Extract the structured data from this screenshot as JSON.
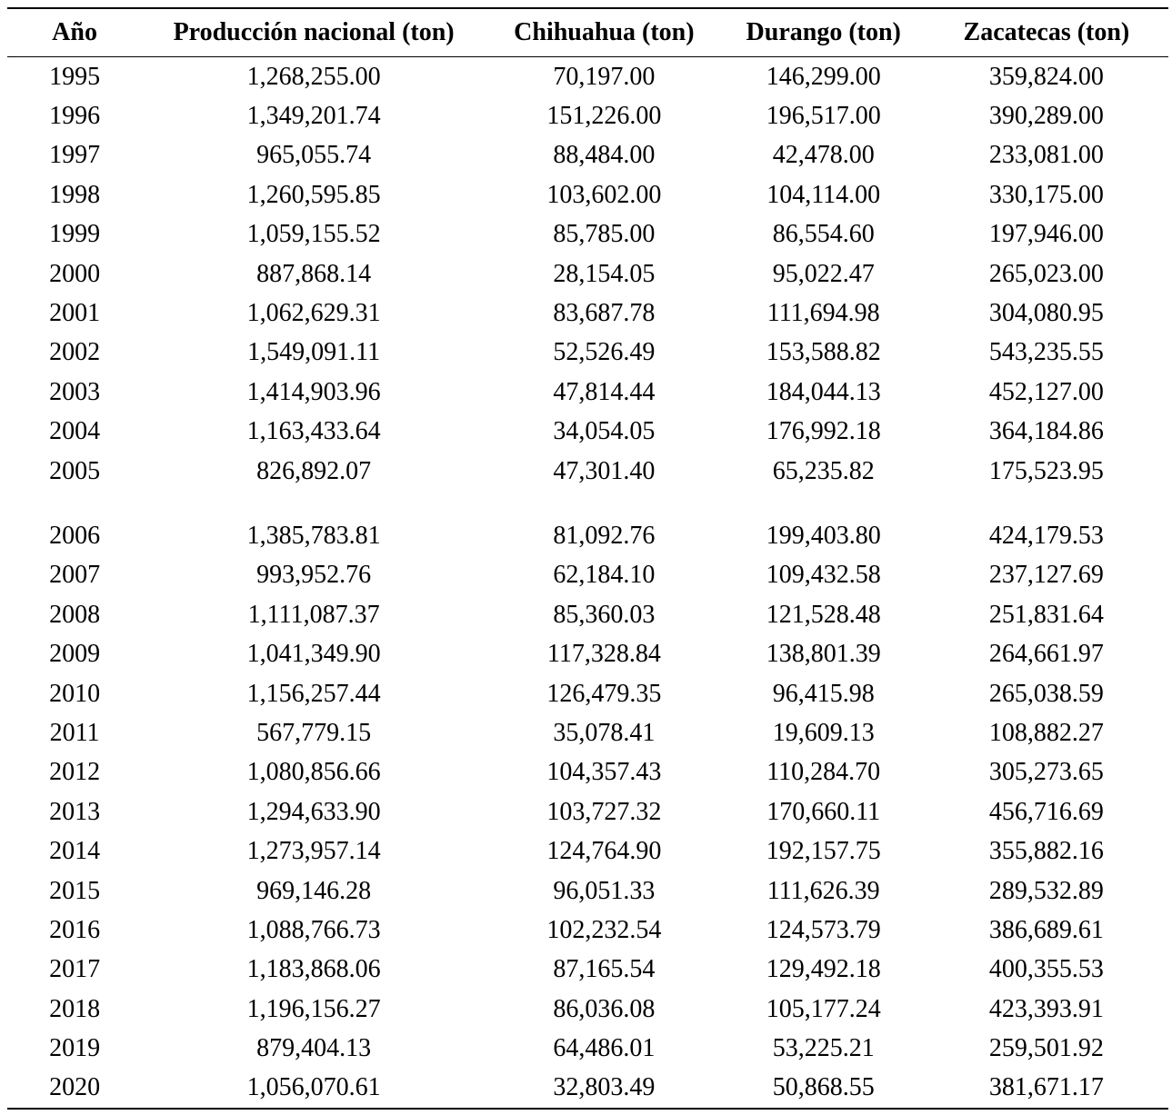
{
  "table": {
    "columns": [
      "Año",
      "Producción nacional (ton)",
      "Chihuahua (ton)",
      "Durango (ton)",
      "Zacatecas (ton)"
    ],
    "spacer_after_row": 10,
    "rows": [
      [
        "1995",
        "1,268,255.00",
        "70,197.00",
        "146,299.00",
        "359,824.00"
      ],
      [
        "1996",
        "1,349,201.74",
        "151,226.00",
        "196,517.00",
        "390,289.00"
      ],
      [
        "1997",
        "965,055.74",
        "88,484.00",
        "42,478.00",
        "233,081.00"
      ],
      [
        "1998",
        "1,260,595.85",
        "103,602.00",
        "104,114.00",
        "330,175.00"
      ],
      [
        "1999",
        "1,059,155.52",
        "85,785.00",
        "86,554.60",
        "197,946.00"
      ],
      [
        "2000",
        "887,868.14",
        "28,154.05",
        "95,022.47",
        "265,023.00"
      ],
      [
        "2001",
        "1,062,629.31",
        "83,687.78",
        "111,694.98",
        "304,080.95"
      ],
      [
        "2002",
        "1,549,091.11",
        "52,526.49",
        "153,588.82",
        "543,235.55"
      ],
      [
        "2003",
        "1,414,903.96",
        "47,814.44",
        "184,044.13",
        "452,127.00"
      ],
      [
        "2004",
        "1,163,433.64",
        "34,054.05",
        "176,992.18",
        "364,184.86"
      ],
      [
        "2005",
        "826,892.07",
        "47,301.40",
        "65,235.82",
        "175,523.95"
      ],
      [
        "2006",
        "1,385,783.81",
        "81,092.76",
        "199,403.80",
        "424,179.53"
      ],
      [
        "2007",
        "993,952.76",
        "62,184.10",
        "109,432.58",
        "237,127.69"
      ],
      [
        "2008",
        "1,111,087.37",
        "85,360.03",
        "121,528.48",
        "251,831.64"
      ],
      [
        "2009",
        "1,041,349.90",
        "117,328.84",
        "138,801.39",
        "264,661.97"
      ],
      [
        "2010",
        "1,156,257.44",
        "126,479.35",
        "96,415.98",
        "265,038.59"
      ],
      [
        "2011",
        "567,779.15",
        "35,078.41",
        "19,609.13",
        "108,882.27"
      ],
      [
        "2012",
        "1,080,856.66",
        "104,357.43",
        "110,284.70",
        "305,273.65"
      ],
      [
        "2013",
        "1,294,633.90",
        "103,727.32",
        "170,660.11",
        "456,716.69"
      ],
      [
        "2014",
        "1,273,957.14",
        "124,764.90",
        "192,157.75",
        "355,882.16"
      ],
      [
        "2015",
        "969,146.28",
        "96,051.33",
        "111,626.39",
        "289,532.89"
      ],
      [
        "2016",
        "1,088,766.73",
        "102,232.54",
        "124,573.79",
        "386,689.61"
      ],
      [
        "2017",
        "1,183,868.06",
        "87,165.54",
        "129,492.18",
        "400,355.53"
      ],
      [
        "2018",
        "1,196,156.27",
        "86,036.08",
        "105,177.24",
        "423,393.91"
      ],
      [
        "2019",
        "879,404.13",
        "64,486.01",
        "53,225.21",
        "259,501.92"
      ],
      [
        "2020",
        "1,056,070.61",
        "32,803.49",
        "50,868.55",
        "381,671.17"
      ]
    ]
  },
  "chart_data": {
    "type": "table",
    "title": "",
    "columns": [
      "Año",
      "Producción nacional (ton)",
      "Chihuahua (ton)",
      "Durango (ton)",
      "Zacatecas (ton)"
    ],
    "categories": [
      "1995",
      "1996",
      "1997",
      "1998",
      "1999",
      "2000",
      "2001",
      "2002",
      "2003",
      "2004",
      "2005",
      "2006",
      "2007",
      "2008",
      "2009",
      "2010",
      "2011",
      "2012",
      "2013",
      "2014",
      "2015",
      "2016",
      "2017",
      "2018",
      "2019",
      "2020"
    ],
    "series": [
      {
        "name": "Producción nacional (ton)",
        "values": [
          1268255.0,
          1349201.74,
          965055.74,
          1260595.85,
          1059155.52,
          887868.14,
          1062629.31,
          1549091.11,
          1414903.96,
          1163433.64,
          826892.07,
          1385783.81,
          993952.76,
          1111087.37,
          1041349.9,
          1156257.44,
          567779.15,
          1080856.66,
          1294633.9,
          1273957.14,
          969146.28,
          1088766.73,
          1183868.06,
          1196156.27,
          879404.13,
          1056070.61
        ]
      },
      {
        "name": "Chihuahua (ton)",
        "values": [
          70197.0,
          151226.0,
          88484.0,
          103602.0,
          85785.0,
          28154.05,
          83687.78,
          52526.49,
          47814.44,
          34054.05,
          47301.4,
          81092.76,
          62184.1,
          85360.03,
          117328.84,
          126479.35,
          35078.41,
          104357.43,
          103727.32,
          124764.9,
          96051.33,
          102232.54,
          87165.54,
          86036.08,
          64486.01,
          32803.49
        ]
      },
      {
        "name": "Durango (ton)",
        "values": [
          146299.0,
          196517.0,
          42478.0,
          104114.0,
          86554.6,
          95022.47,
          111694.98,
          153588.82,
          184044.13,
          176992.18,
          65235.82,
          199403.8,
          109432.58,
          121528.48,
          138801.39,
          96415.98,
          19609.13,
          110284.7,
          170660.11,
          192157.75,
          111626.39,
          124573.79,
          129492.18,
          105177.24,
          53225.21,
          50868.55
        ]
      },
      {
        "name": "Zacatecas (ton)",
        "values": [
          359824.0,
          390289.0,
          233081.0,
          330175.0,
          197946.0,
          265023.0,
          304080.95,
          543235.55,
          452127.0,
          364184.86,
          175523.95,
          424179.53,
          237127.69,
          251831.64,
          264661.97,
          265038.59,
          108882.27,
          305273.65,
          456716.69,
          355882.16,
          289532.89,
          386689.61,
          400355.53,
          423393.91,
          259501.92,
          381671.17
        ]
      }
    ],
    "layout": {
      "grid": false,
      "rules": [
        "top",
        "below-header",
        "bottom"
      ],
      "text_color": "#000000",
      "background": "#ffffff"
    }
  }
}
